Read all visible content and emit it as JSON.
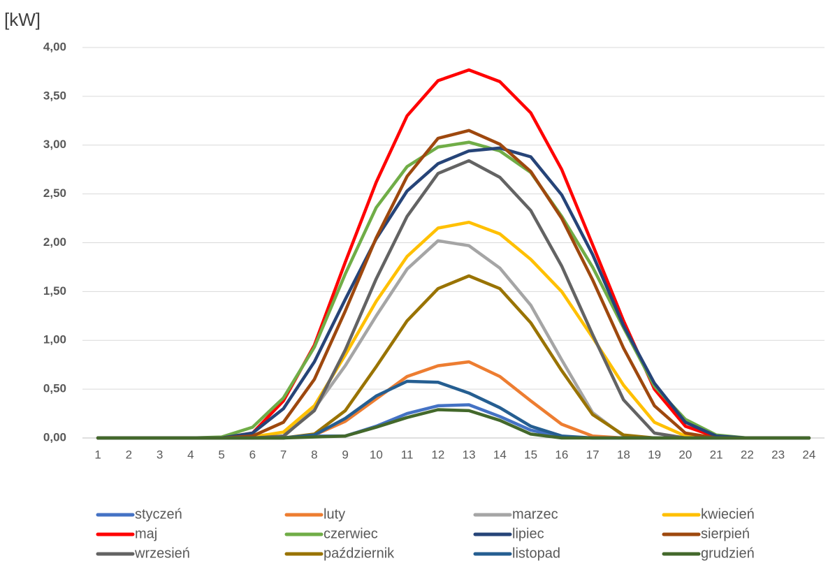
{
  "chart_data": {
    "type": "line",
    "y_label": "[kW]",
    "categories": [
      "1",
      "2",
      "3",
      "4",
      "5",
      "6",
      "7",
      "8",
      "9",
      "10",
      "11",
      "12",
      "13",
      "14",
      "15",
      "16",
      "17",
      "18",
      "19",
      "20",
      "21",
      "22",
      "23",
      "24"
    ],
    "ylim": [
      0,
      4
    ],
    "yticks": [
      {
        "value": 0,
        "label": "0,00"
      },
      {
        "value": 0.5,
        "label": "0,50"
      },
      {
        "value": 1,
        "label": "1,00"
      },
      {
        "value": 1.5,
        "label": "1,50"
      },
      {
        "value": 2,
        "label": "2,00"
      },
      {
        "value": 2.5,
        "label": "2,50"
      },
      {
        "value": 3,
        "label": "3,00"
      },
      {
        "value": 3.5,
        "label": "3,50"
      },
      {
        "value": 4,
        "label": "4,00"
      }
    ],
    "grid": true,
    "legend_position": "bottom",
    "series": [
      {
        "name": "styczeń",
        "color": "#4472C4",
        "values": [
          0,
          0,
          0,
          0,
          0,
          0,
          0,
          0.02,
          0.02,
          0.12,
          0.25,
          0.33,
          0.34,
          0.22,
          0.08,
          0.01,
          0,
          0,
          0,
          0,
          0,
          0,
          0,
          0
        ]
      },
      {
        "name": "luty",
        "color": "#ED7D31",
        "values": [
          0,
          0,
          0,
          0,
          0,
          0,
          0,
          0.03,
          0.17,
          0.4,
          0.63,
          0.74,
          0.78,
          0.63,
          0.38,
          0.14,
          0.02,
          0,
          0,
          0,
          0,
          0,
          0,
          0
        ]
      },
      {
        "name": "marzec",
        "color": "#A5A5A5",
        "values": [
          0,
          0,
          0,
          0,
          0,
          0,
          0.01,
          0.3,
          0.74,
          1.25,
          1.73,
          2.02,
          1.97,
          1.74,
          1.36,
          0.8,
          0.26,
          0.02,
          0,
          0,
          0,
          0,
          0,
          0
        ]
      },
      {
        "name": "kwiecień",
        "color": "#FFC000",
        "values": [
          0,
          0,
          0,
          0,
          0,
          0.01,
          0.06,
          0.33,
          0.85,
          1.4,
          1.86,
          2.15,
          2.21,
          2.09,
          1.83,
          1.5,
          1.03,
          0.54,
          0.16,
          0.02,
          0,
          0,
          0,
          0
        ]
      },
      {
        "name": "maj",
        "color": "#FF0000",
        "values": [
          0,
          0,
          0,
          0,
          0,
          0.05,
          0.38,
          0.95,
          1.8,
          2.62,
          3.3,
          3.66,
          3.77,
          3.65,
          3.33,
          2.75,
          1.98,
          1.2,
          0.5,
          0.12,
          0.01,
          0,
          0,
          0
        ]
      },
      {
        "name": "czerwiec",
        "color": "#70AD47",
        "values": [
          0,
          0,
          0,
          0,
          0.01,
          0.11,
          0.41,
          0.93,
          1.68,
          2.36,
          2.78,
          2.98,
          3.03,
          2.94,
          2.72,
          2.27,
          1.75,
          1.13,
          0.53,
          0.19,
          0.03,
          0,
          0,
          0
        ]
      },
      {
        "name": "lipiec",
        "color": "#264478",
        "values": [
          0,
          0,
          0,
          0,
          0,
          0.05,
          0.3,
          0.78,
          1.42,
          2.04,
          2.53,
          2.81,
          2.94,
          2.97,
          2.88,
          2.49,
          1.88,
          1.15,
          0.56,
          0.16,
          0.02,
          0,
          0,
          0
        ]
      },
      {
        "name": "sierpień",
        "color": "#9E480E",
        "values": [
          0,
          0,
          0,
          0,
          0,
          0.02,
          0.16,
          0.6,
          1.3,
          2.05,
          2.68,
          3.07,
          3.15,
          3.01,
          2.73,
          2.25,
          1.62,
          0.92,
          0.33,
          0.05,
          0,
          0,
          0,
          0
        ]
      },
      {
        "name": "wrzesień",
        "color": "#636363",
        "values": [
          0,
          0,
          0,
          0,
          0,
          0,
          0.02,
          0.28,
          0.9,
          1.63,
          2.27,
          2.71,
          2.84,
          2.67,
          2.33,
          1.76,
          1.06,
          0.39,
          0.05,
          0,
          0,
          0,
          0,
          0
        ]
      },
      {
        "name": "październik",
        "color": "#997300",
        "values": [
          0,
          0,
          0,
          0,
          0,
          0,
          0,
          0.04,
          0.28,
          0.73,
          1.2,
          1.53,
          1.66,
          1.53,
          1.18,
          0.69,
          0.24,
          0.03,
          0,
          0,
          0,
          0,
          0,
          0
        ]
      },
      {
        "name": "listopad",
        "color": "#255E91",
        "values": [
          0,
          0,
          0,
          0,
          0,
          0,
          0,
          0.03,
          0.2,
          0.43,
          0.58,
          0.57,
          0.46,
          0.31,
          0.12,
          0.02,
          0,
          0,
          0,
          0,
          0,
          0,
          0,
          0
        ]
      },
      {
        "name": "grudzień",
        "color": "#43682B",
        "values": [
          0,
          0,
          0,
          0,
          0,
          0,
          0,
          0.01,
          0.02,
          0.11,
          0.21,
          0.29,
          0.28,
          0.18,
          0.04,
          0,
          0,
          0,
          0,
          0,
          0,
          0,
          0,
          0
        ]
      }
    ]
  }
}
